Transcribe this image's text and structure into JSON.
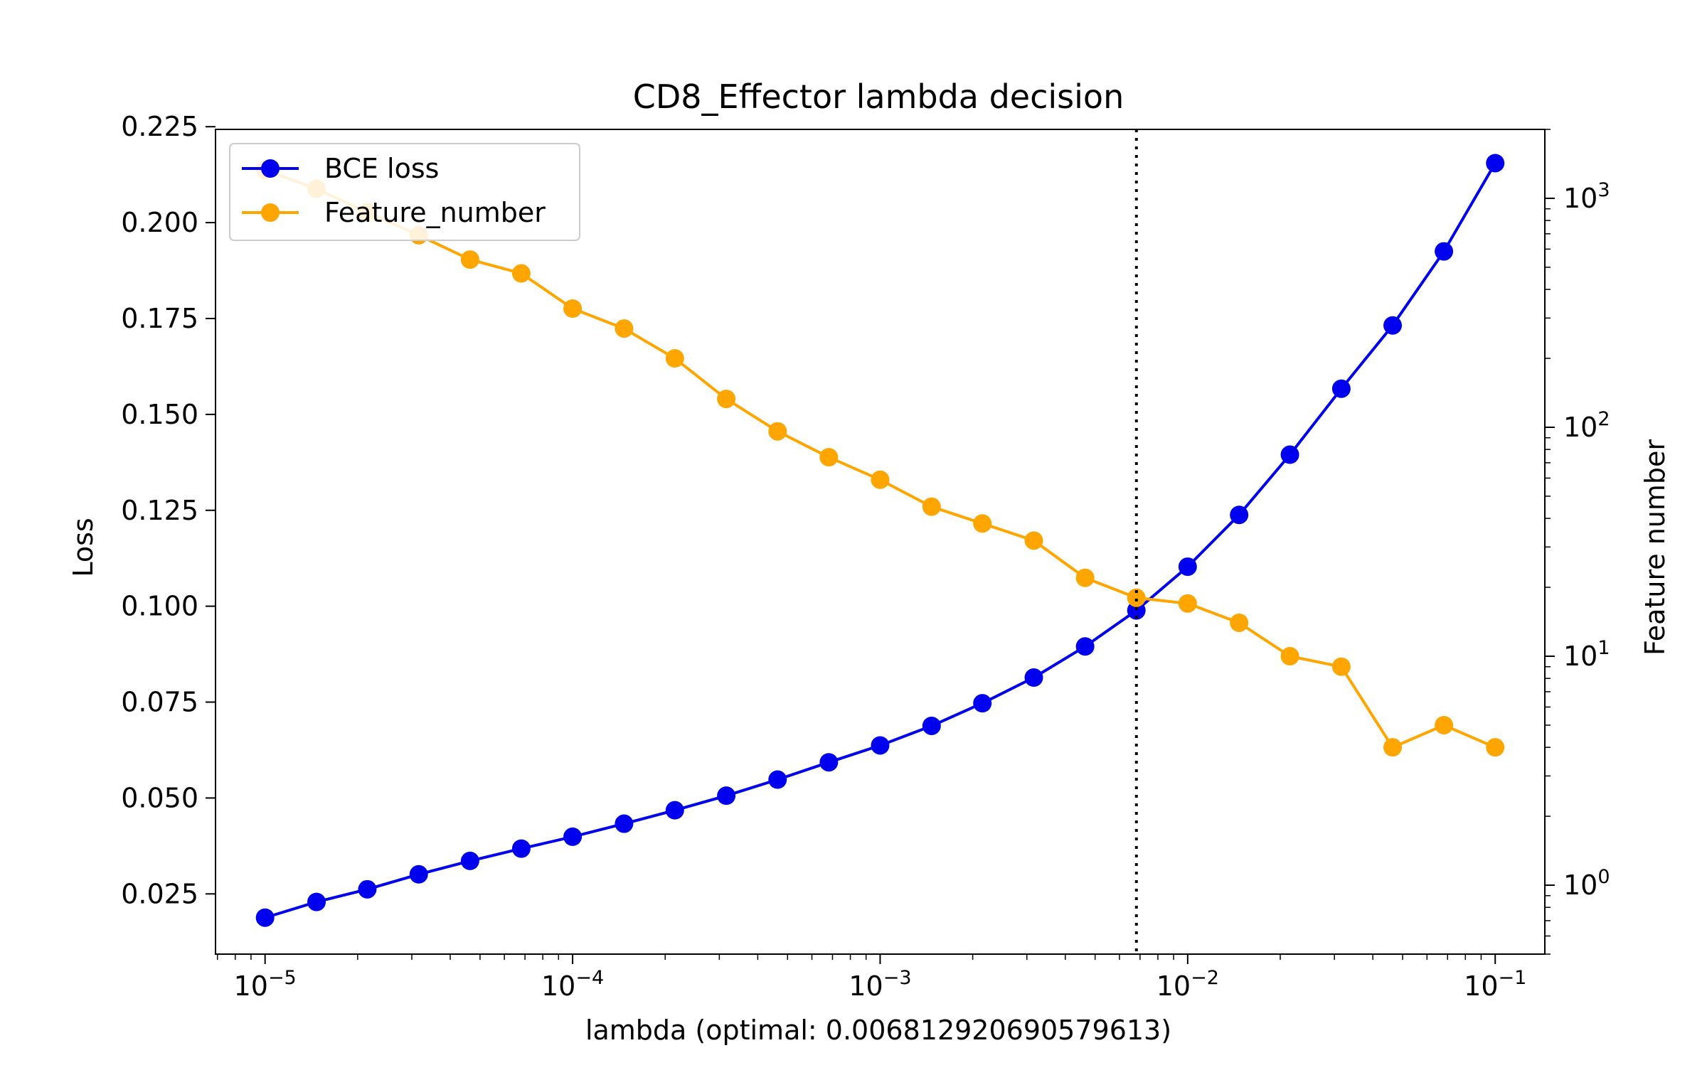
{
  "chart_data": {
    "type": "line",
    "title": "CD8_Effector lambda decision",
    "xlabel": "lambda (optimal: 0.006812920690579613)",
    "ylabel_left": "Loss",
    "ylabel_right": "Feature number",
    "xscale": "log",
    "xlim": [
      6.9e-06,
      0.145
    ],
    "ylim_left": [
      0.0093,
      0.2243
    ],
    "ylim_right": [
      0.5,
      2000
    ],
    "yscale_right": "log",
    "x_tick_labels": [
      {
        "base": "10",
        "exp": "−5",
        "value": 1e-05
      },
      {
        "base": "10",
        "exp": "−4",
        "value": 0.0001
      },
      {
        "base": "10",
        "exp": "−3",
        "value": 0.001
      },
      {
        "base": "10",
        "exp": "−2",
        "value": 0.01
      },
      {
        "base": "10",
        "exp": "−1",
        "value": 0.1
      }
    ],
    "y_left_tick_labels": [
      "0.025",
      "0.050",
      "0.075",
      "0.100",
      "0.125",
      "0.150",
      "0.175",
      "0.200",
      "0.225"
    ],
    "y_left_tick_values": [
      0.025,
      0.05,
      0.075,
      0.1,
      0.125,
      0.15,
      0.175,
      0.2,
      0.225
    ],
    "y_right_tick_labels": [
      {
        "base": "10",
        "exp": "0",
        "value": 1
      },
      {
        "base": "10",
        "exp": "1",
        "value": 10
      },
      {
        "base": "10",
        "exp": "2",
        "value": 100
      },
      {
        "base": "10",
        "exp": "3",
        "value": 1000
      }
    ],
    "x": [
      1e-05,
      1.47e-05,
      2.15e-05,
      3.16e-05,
      4.64e-05,
      6.81e-05,
      0.0001,
      0.000147,
      0.000215,
      0.000316,
      0.000464,
      0.000681,
      0.001,
      0.00147,
      0.00215,
      0.00316,
      0.00464,
      0.00681,
      0.01,
      0.0147,
      0.0215,
      0.0316,
      0.0464,
      0.0681,
      0.1
    ],
    "series": [
      {
        "name": "BCE loss",
        "axis": "left",
        "color": "#0000ee",
        "values": [
          0.0188,
          0.0229,
          0.0262,
          0.0301,
          0.0336,
          0.0368,
          0.0399,
          0.0433,
          0.0468,
          0.0506,
          0.0548,
          0.0593,
          0.0637,
          0.0688,
          0.0747,
          0.0814,
          0.0895,
          0.0989,
          0.1103,
          0.1238,
          0.1395,
          0.1567,
          0.1732,
          0.1925,
          0.2155
        ]
      },
      {
        "name": "Feature_number",
        "axis": "right",
        "color": "#ffa500",
        "values": [
          1330,
          1100,
          870,
          690,
          540,
          470,
          330,
          270,
          200,
          133,
          96,
          74,
          59,
          45,
          38,
          32,
          22,
          18,
          17,
          14,
          10,
          9,
          4,
          5,
          4
        ]
      }
    ],
    "optimal_lambda": 0.006812920690579613,
    "legend_position": "upper-left",
    "grid": false
  }
}
